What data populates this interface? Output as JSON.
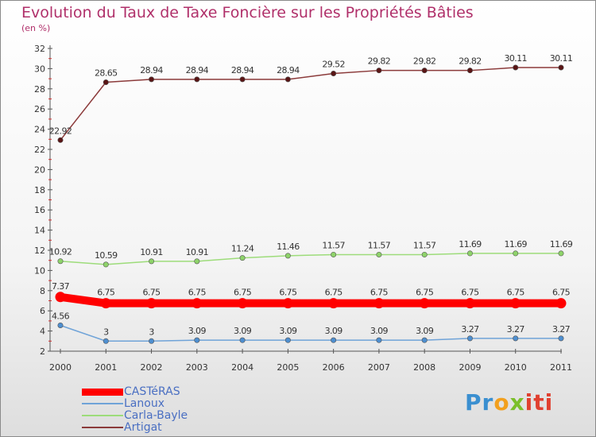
{
  "chart_data": {
    "type": "line",
    "title": "Evolution du Taux de Taxe Foncière sur les Propriétés Bâties",
    "subtitle": "(en %)",
    "xlabel": "",
    "ylabel": "",
    "categories": [
      "2000",
      "2001",
      "2002",
      "2003",
      "2004",
      "2005",
      "2006",
      "2007",
      "2008",
      "2009",
      "2010",
      "2011"
    ],
    "ylim": [
      2,
      32
    ],
    "yticks": [
      "2",
      "4",
      "6",
      "8",
      "10",
      "12",
      "14",
      "16",
      "18",
      "20",
      "22",
      "24",
      "26",
      "28",
      "30",
      "32"
    ],
    "grid": false,
    "legend_position": "bottom-left",
    "series": [
      {
        "name": "Artigat",
        "color": "#8b3a3a",
        "marker": "#5a1515",
        "width": 1.5,
        "values": [
          22.92,
          28.65,
          28.94,
          28.94,
          28.94,
          28.94,
          29.52,
          29.82,
          29.82,
          29.82,
          30.11,
          30.11
        ],
        "labels": [
          "22.92",
          "28.65",
          "28.94",
          "28.94",
          "28.94",
          "28.94",
          "29.52",
          "29.82",
          "29.82",
          "29.82",
          "30.11",
          "30.11"
        ]
      },
      {
        "name": "Carla-Bayle",
        "color": "#9ddc7a",
        "marker": "#8ed36a",
        "width": 1.5,
        "values": [
          10.92,
          10.59,
          10.91,
          10.91,
          11.24,
          11.46,
          11.57,
          11.57,
          11.57,
          11.69,
          11.69,
          11.69
        ],
        "labels": [
          "10.92",
          "10.59",
          "10.91",
          "10.91",
          "11.24",
          "11.46",
          "11.57",
          "11.57",
          "11.57",
          "11.69",
          "11.69",
          "11.69"
        ]
      },
      {
        "name": "CASTéRAS",
        "color": "#ff0000",
        "marker": "#ff0000",
        "width": 10,
        "values": [
          7.37,
          6.75,
          6.75,
          6.75,
          6.75,
          6.75,
          6.75,
          6.75,
          6.75,
          6.75,
          6.75,
          6.75
        ],
        "labels": [
          "7.37",
          "6.75",
          "6.75",
          "6.75",
          "6.75",
          "6.75",
          "6.75",
          "6.75",
          "6.75",
          "6.75",
          "6.75",
          "6.75"
        ]
      },
      {
        "name": "Lanoux",
        "color": "#6fa3d8",
        "marker": "#4e8fd0",
        "width": 1.5,
        "values": [
          4.56,
          3,
          3,
          3.09,
          3.09,
          3.09,
          3.09,
          3.09,
          3.09,
          3.27,
          3.27,
          3.27
        ],
        "labels": [
          "4.56",
          "3",
          "3",
          "3.09",
          "3.09",
          "3.09",
          "3.09",
          "3.09",
          "3.09",
          "3.27",
          "3.27",
          "3.27"
        ]
      }
    ],
    "legend": [
      "CASTéRAS",
      "Lanoux",
      "Carla-Bayle",
      "Artigat"
    ]
  },
  "branding": {
    "logo_text": [
      "Pr",
      "o",
      "x",
      "iti"
    ]
  }
}
